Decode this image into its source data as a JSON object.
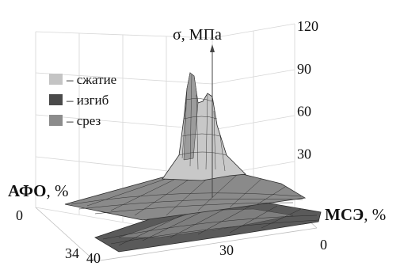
{
  "chart_data": {
    "type": "surface3d",
    "title": "",
    "z_axis": {
      "label": "σ, МПа",
      "ticks": [
        30,
        60,
        90,
        120
      ],
      "range": [
        0,
        120
      ]
    },
    "x_axis": {
      "label_bold": "МСЭ",
      "label_unit": ", %",
      "ticks": [
        "0",
        "30"
      ]
    },
    "y_axis": {
      "label_bold": "АФО",
      "label_unit": ", %",
      "ticks": [
        "0",
        "34",
        "40"
      ]
    },
    "legend": {
      "placement": "upper-left",
      "entries": [
        {
          "label": "– сжатие",
          "color": "#c4c4c4"
        },
        {
          "label": "– изгиб",
          "color": "#4a4a4a"
        },
        {
          "label": "– срез",
          "color": "#8c8c8c"
        }
      ]
    },
    "series": [
      {
        "name": "сжатие",
        "peak_value": 100,
        "base_value": 8
      },
      {
        "name": "изгиб",
        "peak_value": 22,
        "base_value": 10
      },
      {
        "name": "срез",
        "peak_value": 6,
        "base_value": 3
      }
    ],
    "grid": true
  }
}
